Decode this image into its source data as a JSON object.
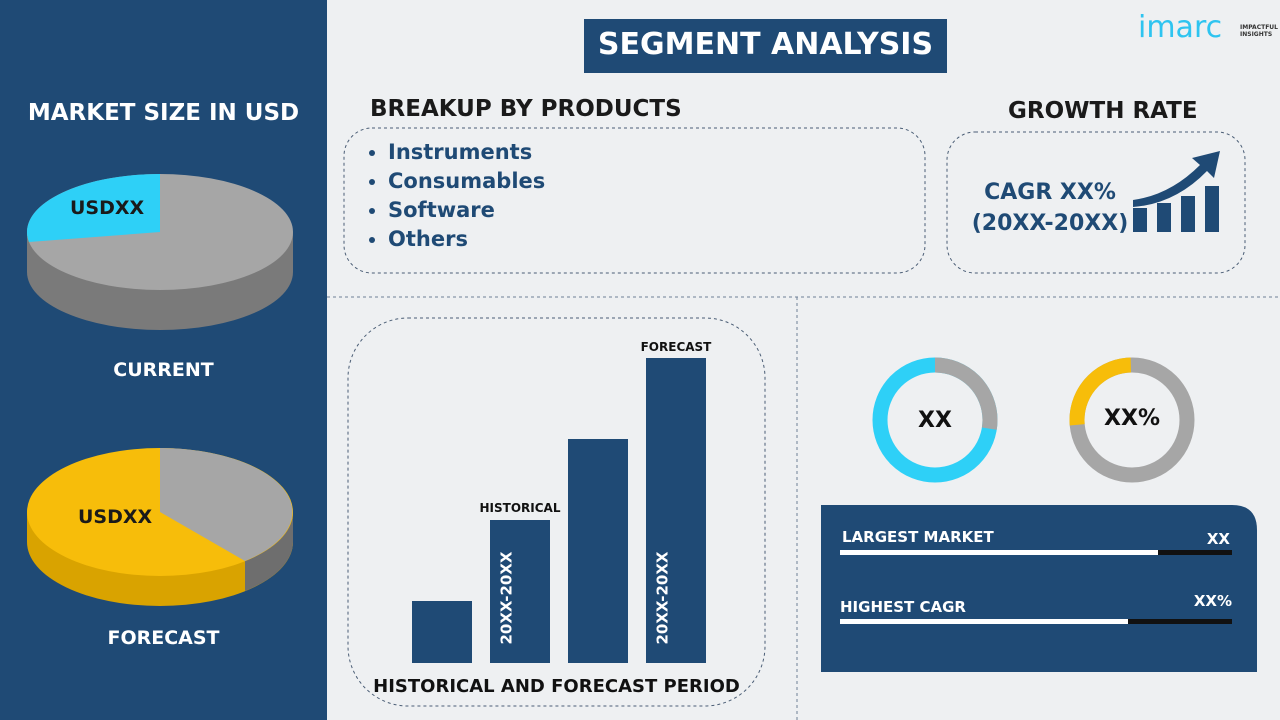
{
  "sidebar": {
    "title": "MARKET SIZE IN USD",
    "current": {
      "value": "USDXX",
      "label": "CURRENT"
    },
    "forecast": {
      "value": "USDXX",
      "label": "FORECAST"
    }
  },
  "header": {
    "title": "SEGMENT ANALYSIS",
    "logo": "imarc",
    "tagline": "IMPACTFUL INSIGHTS"
  },
  "breakup": {
    "title": "BREAKUP BY PRODUCTS",
    "items": [
      "Instruments",
      "Consumables",
      "Software",
      "Others"
    ]
  },
  "growth": {
    "title": "GROWTH RATE",
    "cagr": "CAGR XX%",
    "period": "(20XX-20XX)"
  },
  "bars": {
    "forecast_label": "FORECAST",
    "historical_label": "HISTORICAL",
    "historical_period": "20XX-20XX",
    "forecast_period": "20XX-20XX",
    "caption": "HISTORICAL AND FORECAST PERIOD"
  },
  "donuts": [
    "XX",
    "XX%"
  ],
  "panel": {
    "rows": [
      {
        "label": "LARGEST MARKET",
        "value": "XX"
      },
      {
        "label": "HIGHEST CAGR",
        "value": "XX%"
      }
    ]
  }
}
